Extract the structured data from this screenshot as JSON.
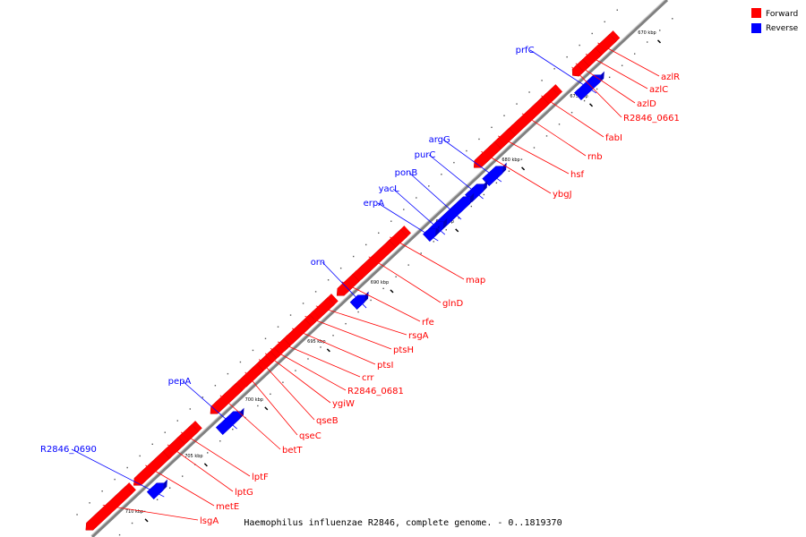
{
  "caption": "Haemophilus influenzae R2846, complete genome. - 0..1819370",
  "legend": [
    {
      "label": "Forward",
      "color": "#ff0000"
    },
    {
      "label": "Reverse",
      "color": "#0000ff"
    }
  ],
  "colors": {
    "forward": "#ff0000",
    "reverse": "#0000ff",
    "backbone": "#808080"
  },
  "ticks": [
    "670 kbp",
    "675 kbp",
    "680 kbp",
    "685 kbp",
    "690 kbp",
    "695 kbp",
    "700 kbp",
    "705 kbp",
    "710 kbp"
  ],
  "genes": [
    {
      "name": "azlR",
      "strand": "forward"
    },
    {
      "name": "azlC",
      "strand": "forward"
    },
    {
      "name": "azlD",
      "strand": "forward"
    },
    {
      "name": "R2846_0661",
      "strand": "forward"
    },
    {
      "name": "fabI",
      "strand": "forward"
    },
    {
      "name": "rnb",
      "strand": "forward"
    },
    {
      "name": "hsf",
      "strand": "forward"
    },
    {
      "name": "ybgJ",
      "strand": "forward"
    },
    {
      "name": "map",
      "strand": "forward"
    },
    {
      "name": "glnD",
      "strand": "forward"
    },
    {
      "name": "rfe",
      "strand": "forward"
    },
    {
      "name": "rsgA",
      "strand": "forward"
    },
    {
      "name": "ptsH",
      "strand": "forward"
    },
    {
      "name": "ptsI",
      "strand": "forward"
    },
    {
      "name": "crr",
      "strand": "forward"
    },
    {
      "name": "R2846_0681",
      "strand": "forward"
    },
    {
      "name": "ygiW",
      "strand": "forward"
    },
    {
      "name": "qseB",
      "strand": "forward"
    },
    {
      "name": "qseC",
      "strand": "forward"
    },
    {
      "name": "betT",
      "strand": "forward"
    },
    {
      "name": "lptF",
      "strand": "forward"
    },
    {
      "name": "lptG",
      "strand": "forward"
    },
    {
      "name": "metE",
      "strand": "forward"
    },
    {
      "name": "lsgA",
      "strand": "forward"
    },
    {
      "name": "prfC",
      "strand": "reverse"
    },
    {
      "name": "argG",
      "strand": "reverse"
    },
    {
      "name": "purC",
      "strand": "reverse"
    },
    {
      "name": "ponB",
      "strand": "reverse"
    },
    {
      "name": "yacL",
      "strand": "reverse"
    },
    {
      "name": "erpA",
      "strand": "reverse"
    },
    {
      "name": "orn",
      "strand": "reverse"
    },
    {
      "name": "pepA",
      "strand": "reverse"
    },
    {
      "name": "R2846_0690",
      "strand": "reverse"
    }
  ]
}
